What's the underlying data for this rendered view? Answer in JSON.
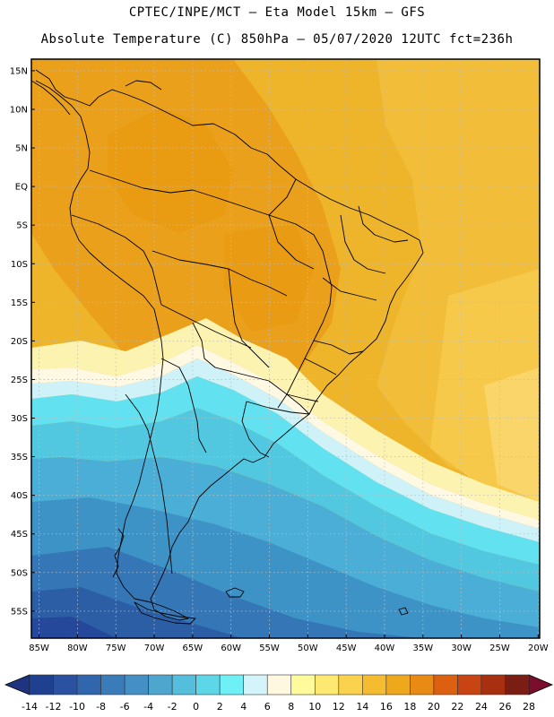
{
  "title": {
    "line1": "CPTEC/INPE/MCT —  Eta Model 15km — GFS",
    "line2": "Absolute Temperature (C) 850hPa — 05/07/2020 12UTC fct=236h"
  },
  "map": {
    "region": "South America",
    "lat_labels": [
      "15N",
      "10N",
      "5N",
      "EQ",
      "5S",
      "10S",
      "15S",
      "20S",
      "25S",
      "30S",
      "35S",
      "40S",
      "45S",
      "50S",
      "55S"
    ],
    "lon_labels": [
      "85W",
      "80W",
      "75W",
      "70W",
      "65W",
      "60W",
      "55W",
      "50W",
      "45W",
      "40W",
      "35W",
      "30W",
      "25W",
      "20W"
    ]
  },
  "colorbar": {
    "ticks": [
      "-14",
      "-12",
      "-10",
      "-8",
      "-6",
      "-4",
      "-2",
      "0",
      "2",
      "4",
      "6",
      "8",
      "10",
      "12",
      "14",
      "16",
      "18",
      "20",
      "22",
      "24",
      "26",
      "28"
    ],
    "colors": [
      "#1f3f8f",
      "#2a52a0",
      "#3066ad",
      "#3a7cba",
      "#4490c4",
      "#4ea6cf",
      "#55bedc",
      "#5dd6e8",
      "#6ef0f6",
      "#d2f4fa",
      "#fff8e0",
      "#fffa9c",
      "#fde870",
      "#fbd24e",
      "#f5bc32",
      "#eea81c",
      "#e88a14",
      "#dc6010",
      "#c84412",
      "#a83010",
      "#7a1e14"
    ],
    "under_color": "#1e3480",
    "over_color": "#7a0e2c"
  }
}
